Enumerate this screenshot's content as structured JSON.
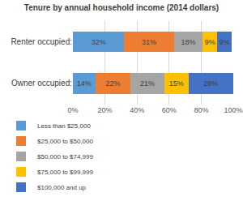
{
  "chart_data": {
    "type": "bar",
    "title": "Tenure by annual household income (2014 dollars)",
    "orientation": "horizontal",
    "stacked": true,
    "data_labels": true,
    "grid": true,
    "legend": "bottom",
    "categories": [
      "Renter occupied:",
      "Owner occupied:"
    ],
    "series": [
      {
        "name": "Less than $25,000",
        "color": "#5B9BD5",
        "values": [
          32,
          14
        ],
        "value_labels": [
          "32%",
          "14%"
        ]
      },
      {
        "name": "$25,000 to $50,000",
        "color": "#ED7D31",
        "values": [
          31,
          22
        ],
        "value_labels": [
          "31%",
          "22%"
        ]
      },
      {
        "name": "$50,000 to $74,999",
        "color": "#A5A5A5",
        "values": [
          18,
          21
        ],
        "value_labels": [
          "18%",
          "21%"
        ]
      },
      {
        "name": "$75,000 to $99,999",
        "color": "#FFC000",
        "values": [
          9,
          15
        ],
        "value_labels": [
          "9%",
          "15%"
        ]
      },
      {
        "name": "$100,000 and up",
        "color": "#4472C4",
        "values": [
          9,
          28
        ],
        "value_labels": [
          "9%",
          "28%"
        ]
      }
    ],
    "xlim": [
      0,
      100
    ],
    "xticks": [
      {
        "value": 0,
        "label": "0%"
      },
      {
        "value": 20,
        "label": "20%"
      },
      {
        "value": 40,
        "label": "40%"
      },
      {
        "value": 60,
        "label": "60%"
      },
      {
        "value": 80,
        "label": "80%"
      },
      {
        "value": 100,
        "label": "100%"
      }
    ]
  }
}
